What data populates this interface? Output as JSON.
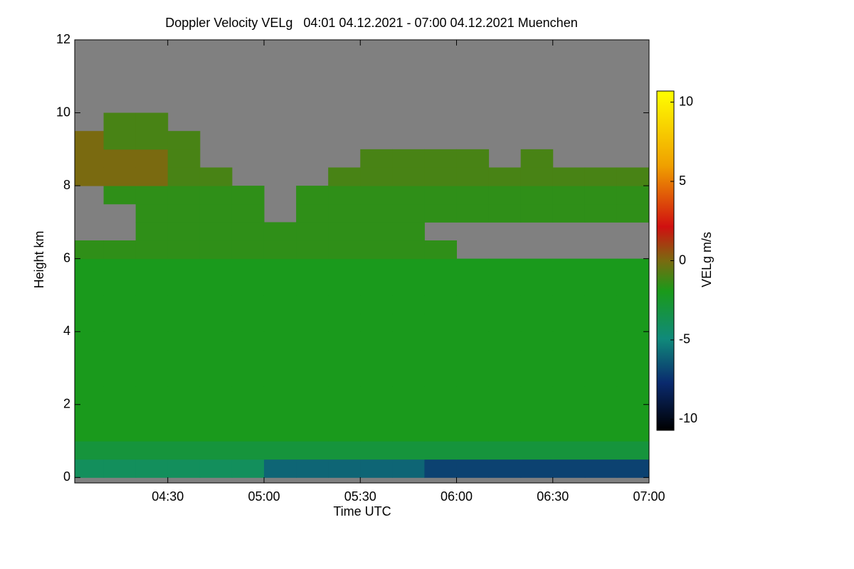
{
  "chart_data": {
    "type": "heatmap",
    "title": "Doppler Velocity VELg   04:01 04.12.2021 - 07:00 04.12.2021 Muenchen",
    "x_label": "Time UTC",
    "y_label": "Height km",
    "colorbar_label": "VELg m/s",
    "xlim": [
      "04:01",
      "07:00"
    ],
    "xticks": [
      "04:30",
      "05:00",
      "05:30",
      "06:00",
      "06:30",
      "07:00"
    ],
    "ylim": [
      -0.15,
      12
    ],
    "yticks": [
      0,
      2,
      4,
      6,
      8,
      10,
      12
    ],
    "zlim": [
      -10.7,
      10.7
    ],
    "zticks": [
      -10,
      -5,
      0,
      5,
      10
    ],
    "xbins": [
      "04:01",
      "04:10",
      "04:20",
      "04:30",
      "04:40",
      "04:50",
      "05:00",
      "05:10",
      "05:20",
      "05:30",
      "05:40",
      "05:50",
      "06:00",
      "06:10",
      "06:20",
      "06:30",
      "06:40",
      "06:50",
      "07:00"
    ],
    "ybins": [
      0,
      0.5,
      1,
      1.5,
      2,
      2.5,
      3,
      3.5,
      4,
      4.5,
      5,
      5.5,
      6,
      6.5,
      7,
      7.5,
      8,
      8.5,
      9,
      9.5,
      10,
      10.5,
      11,
      11.5,
      12
    ],
    "z": [
      [
        -4,
        -4,
        -4,
        -4,
        -4,
        -4,
        -6,
        -6,
        -6,
        -6,
        -6,
        -7,
        -7,
        -7,
        -7,
        -7,
        -7,
        -7
      ],
      [
        -3,
        -3,
        -3,
        -3,
        -3,
        -3,
        -3,
        -3,
        -3,
        -3,
        -3,
        -3,
        -3,
        -3,
        -3,
        -3,
        -3,
        -3
      ],
      [
        -2,
        -2,
        -2,
        -2,
        -2,
        -2,
        -2,
        -2,
        -2,
        -2,
        -2,
        -2,
        -2,
        -2,
        -2,
        -2,
        -2,
        -2
      ],
      [
        -2,
        -2,
        -2,
        -2,
        -2,
        -2,
        -2,
        -2,
        -2,
        -2,
        -2,
        -2,
        -2,
        -2,
        -2,
        -2,
        -2,
        -2
      ],
      [
        -2,
        -2,
        -2,
        -2,
        -2,
        -2,
        -2,
        -2,
        -2,
        -2,
        -2,
        -2,
        -2,
        -2,
        -2,
        -2,
        -2,
        -2
      ],
      [
        -2,
        -2,
        -2,
        -2,
        -2,
        -2,
        -2,
        -2,
        -2,
        -2,
        -2,
        -2,
        -2,
        -2,
        -2,
        -2,
        -2,
        -2
      ],
      [
        -2,
        -2,
        -2,
        -2,
        -2,
        -2,
        -2,
        -2,
        -2,
        -2,
        -2,
        -2,
        -2,
        -2,
        -2,
        -2,
        -2,
        -2
      ],
      [
        -2,
        -2,
        -2,
        -2,
        -2,
        -2,
        -2,
        -2,
        -2,
        -2,
        -2,
        -2,
        -2,
        -2,
        -2,
        -2,
        -2,
        -2
      ],
      [
        -2,
        -2,
        -2,
        -2,
        -2,
        -2,
        -2,
        -2,
        -2,
        -2,
        -2,
        -2,
        -2,
        -2,
        -2,
        -2,
        -2,
        -2
      ],
      [
        -2,
        -2,
        -2,
        -2,
        -2,
        -2,
        -2,
        -2,
        -2,
        -2,
        -2,
        -2,
        -2,
        -2,
        -2,
        -2,
        -2,
        -2
      ],
      [
        -2,
        -2,
        -2,
        -2,
        -2,
        -2,
        -2,
        -2,
        -2,
        -2,
        -2,
        -2,
        -2,
        -2,
        -2,
        -2,
        -2,
        -2
      ],
      [
        -2,
        -2,
        -2,
        -2,
        -2,
        -2,
        -2,
        -2,
        -2,
        -2,
        -2,
        -2,
        -2,
        -2,
        -2,
        -2,
        -2,
        -2
      ],
      [
        -1.5,
        -1.5,
        -1.5,
        -1.5,
        -1.5,
        -1.5,
        -1.5,
        -1.5,
        -1.5,
        -1.5,
        -1.5,
        -1.5,
        null,
        null,
        null,
        null,
        null,
        null
      ],
      [
        null,
        null,
        -1.5,
        -1.5,
        -1.5,
        -1.5,
        -1.5,
        -1.5,
        -1.5,
        -1.5,
        -1.5,
        null,
        null,
        null,
        null,
        null,
        null,
        null
      ],
      [
        null,
        null,
        -1.5,
        -1.5,
        -1.5,
        -1.5,
        null,
        -1.5,
        -1.5,
        -1.5,
        -1.5,
        -1.5,
        -1.5,
        -1.5,
        -1.5,
        -1.5,
        -1.5,
        -1.5
      ],
      [
        null,
        -1.5,
        -1.5,
        -1.5,
        -1.5,
        -1.5,
        null,
        -1.5,
        -1.5,
        -1.5,
        -1.5,
        -1.5,
        -1.5,
        -1.5,
        -1.5,
        -1.5,
        -1.5,
        -1.5
      ],
      [
        0,
        0,
        0,
        -1,
        -1,
        null,
        null,
        null,
        -1,
        -1,
        -1,
        -1,
        -1,
        -1,
        -1,
        -1,
        -1,
        -1
      ],
      [
        0,
        0,
        0,
        -1,
        null,
        null,
        null,
        null,
        null,
        -1,
        -1,
        -1,
        -1,
        null,
        -1,
        null,
        null,
        null
      ],
      [
        0,
        -1,
        -1,
        -1,
        null,
        null,
        null,
        null,
        null,
        null,
        null,
        null,
        null,
        null,
        null,
        null,
        null,
        null
      ],
      [
        null,
        -1,
        -1,
        null,
        null,
        null,
        null,
        null,
        null,
        null,
        null,
        null,
        null,
        null,
        null,
        null,
        null,
        null
      ],
      [
        null,
        null,
        null,
        null,
        null,
        null,
        null,
        null,
        null,
        null,
        null,
        null,
        null,
        null,
        null,
        null,
        null,
        null
      ],
      [
        null,
        null,
        null,
        null,
        null,
        null,
        null,
        null,
        null,
        null,
        null,
        null,
        null,
        null,
        null,
        null,
        null,
        null
      ],
      [
        null,
        null,
        null,
        null,
        null,
        null,
        null,
        null,
        null,
        null,
        null,
        null,
        null,
        null,
        null,
        null,
        null,
        null
      ],
      [
        null,
        null,
        null,
        null,
        null,
        null,
        null,
        null,
        null,
        null,
        null,
        null,
        null,
        null,
        null,
        null,
        null,
        null
      ]
    ]
  }
}
